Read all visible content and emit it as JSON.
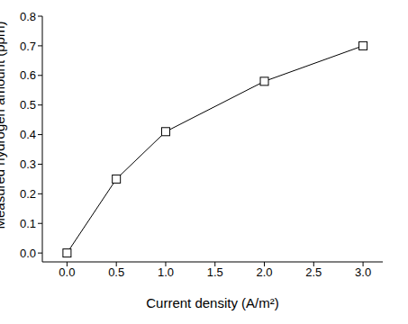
{
  "chart_data": {
    "type": "line",
    "x_label": "Current density (A/m²)",
    "y_label": "Measured hydrogen amount (ppm)",
    "x": [
      0,
      0.5,
      1,
      2,
      3
    ],
    "series": [
      {
        "name": "Measured hydrogen amount",
        "color": "#000000",
        "marker": "square",
        "values": [
          0,
          0.25,
          0.41,
          0.58,
          0.7
        ]
      }
    ],
    "xlim": [
      -0.25,
      3.2
    ],
    "xticks": [
      {
        "value": 0,
        "label": "0.0"
      },
      {
        "value": 0.5,
        "label": "0.5"
      },
      {
        "value": 1,
        "label": "1.0"
      },
      {
        "value": 1.5,
        "label": "1.5"
      },
      {
        "value": 2,
        "label": "2.0"
      },
      {
        "value": 2.5,
        "label": "2.5"
      },
      {
        "value": 3,
        "label": "3.0"
      }
    ],
    "ylim": [
      -0.03,
      0.8
    ],
    "yticks": [
      {
        "value": 0,
        "label": "0.0"
      },
      {
        "value": 0.1,
        "label": "0.1"
      },
      {
        "value": 0.2,
        "label": "0.2"
      },
      {
        "value": 0.3,
        "label": "0.3"
      },
      {
        "value": 0.4,
        "label": "0.4"
      },
      {
        "value": 0.5,
        "label": "0.5"
      },
      {
        "value": 0.6,
        "label": "0.6"
      },
      {
        "value": 0.7,
        "label": "0.7"
      },
      {
        "value": 0.8,
        "label": "0.8"
      }
    ],
    "grid": false
  }
}
